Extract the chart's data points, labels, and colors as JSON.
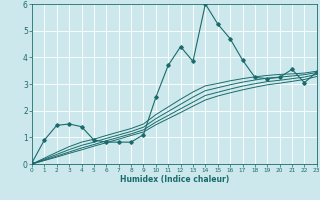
{
  "xlabel": "Humidex (Indice chaleur)",
  "bg_color": "#cce8ed",
  "line_color": "#1a6b6b",
  "grid_color": "#ffffff",
  "xmin": 0,
  "xmax": 23,
  "ymin": 0,
  "ymax": 6,
  "main_x": [
    0,
    1,
    2,
    3,
    4,
    5,
    6,
    7,
    8,
    9,
    10,
    11,
    12,
    13,
    14,
    15,
    16,
    17,
    18,
    19,
    20,
    21,
    22,
    23
  ],
  "main_y": [
    0.05,
    0.9,
    1.45,
    1.5,
    1.4,
    0.9,
    0.82,
    0.82,
    0.82,
    1.1,
    2.5,
    3.7,
    4.4,
    3.85,
    6.0,
    5.25,
    4.7,
    3.9,
    3.25,
    3.2,
    3.25,
    3.55,
    3.05,
    3.45
  ],
  "trend_lines": [
    [
      0.0,
      0.13,
      0.26,
      0.4,
      0.53,
      0.67,
      0.8,
      0.93,
      1.07,
      1.2,
      1.47,
      1.7,
      1.93,
      2.17,
      2.4,
      2.55,
      2.67,
      2.78,
      2.88,
      2.97,
      3.03,
      3.1,
      3.17,
      3.28
    ],
    [
      0.0,
      0.15,
      0.3,
      0.45,
      0.6,
      0.73,
      0.87,
      1.0,
      1.13,
      1.28,
      1.57,
      1.82,
      2.07,
      2.32,
      2.57,
      2.69,
      2.81,
      2.92,
      3.01,
      3.09,
      3.14,
      3.2,
      3.26,
      3.36
    ],
    [
      0.0,
      0.18,
      0.36,
      0.54,
      0.7,
      0.82,
      0.96,
      1.09,
      1.22,
      1.38,
      1.7,
      1.97,
      2.24,
      2.51,
      2.75,
      2.86,
      2.97,
      3.07,
      3.15,
      3.22,
      3.26,
      3.3,
      3.35,
      3.43
    ],
    [
      0.0,
      0.22,
      0.44,
      0.65,
      0.82,
      0.93,
      1.07,
      1.2,
      1.33,
      1.5,
      1.85,
      2.14,
      2.43,
      2.7,
      2.93,
      3.02,
      3.12,
      3.2,
      3.27,
      3.32,
      3.36,
      3.38,
      3.41,
      3.48
    ]
  ]
}
